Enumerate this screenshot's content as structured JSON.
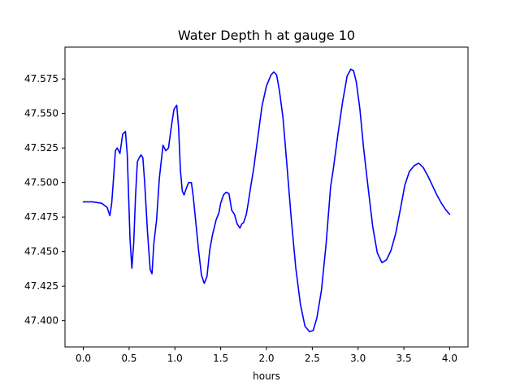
{
  "chart_data": {
    "type": "line",
    "title": "Water Depth h at gauge 10",
    "xlabel": "hours",
    "ylabel": "",
    "xlim": [
      -0.2,
      4.2
    ],
    "ylim": [
      47.381,
      47.598
    ],
    "x_ticks": [
      0.0,
      0.5,
      1.0,
      1.5,
      2.0,
      2.5,
      3.0,
      3.5,
      4.0
    ],
    "x_tick_labels": [
      "0.0",
      "0.5",
      "1.0",
      "1.5",
      "2.0",
      "2.5",
      "3.0",
      "3.5",
      "4.0"
    ],
    "y_ticks": [
      47.4,
      47.425,
      47.45,
      47.475,
      47.5,
      47.525,
      47.55,
      47.575
    ],
    "y_tick_labels": [
      "47.400",
      "47.425",
      "47.450",
      "47.475",
      "47.500",
      "47.525",
      "47.550",
      "47.575"
    ],
    "grid": false,
    "series": [
      {
        "name": "",
        "color": "#0000ff",
        "x": [
          0.0,
          0.1,
          0.2,
          0.26,
          0.29,
          0.31,
          0.33,
          0.35,
          0.37,
          0.4,
          0.43,
          0.46,
          0.48,
          0.51,
          0.53,
          0.55,
          0.57,
          0.59,
          0.61,
          0.63,
          0.65,
          0.67,
          0.7,
          0.73,
          0.75,
          0.77,
          0.8,
          0.83,
          0.87,
          0.9,
          0.93,
          0.96,
          0.99,
          1.02,
          1.04,
          1.06,
          1.08,
          1.1,
          1.12,
          1.15,
          1.18,
          1.2,
          1.23,
          1.26,
          1.29,
          1.32,
          1.35,
          1.38,
          1.41,
          1.45,
          1.48,
          1.5,
          1.53,
          1.56,
          1.59,
          1.62,
          1.65,
          1.68,
          1.71,
          1.73,
          1.75,
          1.78,
          1.8,
          1.83,
          1.86,
          1.9,
          1.95,
          2.0,
          2.05,
          2.08,
          2.11,
          2.14,
          2.18,
          2.22,
          2.27,
          2.32,
          2.37,
          2.42,
          2.47,
          2.51,
          2.55,
          2.6,
          2.65,
          2.7,
          2.73,
          2.78,
          2.83,
          2.88,
          2.92,
          2.95,
          2.98,
          3.02,
          3.06,
          3.11,
          3.16,
          3.21,
          3.26,
          3.31,
          3.36,
          3.41,
          3.46,
          3.51,
          3.56,
          3.61,
          3.66,
          3.71,
          3.76,
          3.81,
          3.86,
          3.91,
          3.96,
          4.0
        ],
        "y": [
          47.486,
          47.486,
          47.485,
          47.482,
          47.476,
          47.485,
          47.503,
          47.523,
          47.525,
          47.521,
          47.535,
          47.537,
          47.52,
          47.459,
          47.438,
          47.456,
          47.49,
          47.515,
          47.518,
          47.52,
          47.518,
          47.5,
          47.465,
          47.437,
          47.434,
          47.456,
          47.473,
          47.503,
          47.527,
          47.523,
          47.525,
          47.54,
          47.553,
          47.556,
          47.54,
          47.509,
          47.494,
          47.491,
          47.495,
          47.5,
          47.5,
          47.49,
          47.47,
          47.45,
          47.433,
          47.427,
          47.432,
          47.451,
          47.462,
          47.473,
          47.478,
          47.485,
          47.491,
          47.493,
          47.492,
          47.48,
          47.477,
          47.47,
          47.467,
          47.47,
          47.471,
          47.477,
          47.485,
          47.498,
          47.51,
          47.53,
          47.555,
          47.57,
          47.578,
          47.58,
          47.578,
          47.567,
          47.547,
          47.515,
          47.474,
          47.438,
          47.412,
          47.396,
          47.392,
          47.393,
          47.402,
          47.422,
          47.455,
          47.497,
          47.51,
          47.535,
          47.558,
          47.577,
          47.582,
          47.581,
          47.573,
          47.553,
          47.525,
          47.496,
          47.468,
          47.449,
          47.442,
          47.444,
          47.451,
          47.463,
          47.48,
          47.498,
          47.508,
          47.512,
          47.514,
          47.511,
          47.505,
          47.498,
          47.491,
          47.485,
          47.48,
          47.477
        ]
      }
    ]
  }
}
